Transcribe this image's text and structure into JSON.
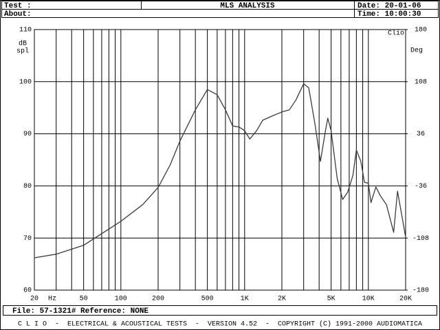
{
  "header": {
    "test": "Test :",
    "about": "About:",
    "title": "MLS ANALYSIS",
    "date": "Date: 20-01-06",
    "time": "Time: 10:00:30"
  },
  "footer": {
    "file": "File: 57-1321# Reference: NONE",
    "credits": "C L I O  -  ELECTRICAL & ACOUSTICAL TESTS  -  VERSION 4.52  -  COPYRIGHT (C) 1991-2000 AUDIOMATICA"
  },
  "chart_data": {
    "type": "line",
    "xscale": "log",
    "grid": true,
    "watermark": "Clio",
    "x_label": "Hz",
    "y_label": [
      "dB",
      "spl"
    ],
    "y2_label": "Deg",
    "xlim": [
      20,
      20000
    ],
    "xticks": [
      20,
      50,
      100,
      200,
      500,
      {
        "value": 1000,
        "label": "1K"
      },
      {
        "value": 2000,
        "label": "2K"
      },
      {
        "value": 5000,
        "label": "5K"
      },
      {
        "value": 10000,
        "label": "10K"
      },
      {
        "value": 20000,
        "label": "20K"
      }
    ],
    "xminor_ticks": [
      30,
      40,
      60,
      70,
      80,
      90,
      300,
      400,
      600,
      700,
      800,
      900,
      3000,
      4000,
      6000,
      7000,
      8000,
      9000
    ],
    "ylim": [
      60,
      110
    ],
    "yticks": [
      60,
      70,
      80,
      90,
      100,
      110
    ],
    "y2lim": [
      -180,
      180
    ],
    "y2ticks": [
      -180,
      -108,
      -36,
      36,
      108,
      180
    ],
    "x": [
      20,
      30,
      50,
      100,
      150,
      200,
      250,
      300,
      400,
      500,
      600,
      700,
      800,
      900,
      1000,
      1100,
      1250,
      1400,
      1700,
      2000,
      2300,
      2600,
      3000,
      3300,
      3700,
      4100,
      4500,
      4700,
      5000,
      5600,
      6200,
      6800,
      7500,
      8000,
      8700,
      9300,
      10000,
      10500,
      11500,
      12500,
      14000,
      16000,
      17200,
      20000
    ],
    "series": [
      {
        "name": "MLS",
        "color": "#3a3a3a",
        "values": [
          66.2,
          66.9,
          68.6,
          73.2,
          76.4,
          79.7,
          84.0,
          88.6,
          94.6,
          98.5,
          97.5,
          94.6,
          91.5,
          91.3,
          90.6,
          89.0,
          90.6,
          92.6,
          93.5,
          94.2,
          94.6,
          96.5,
          99.6,
          98.8,
          91.9,
          84.7,
          90.6,
          93.0,
          90.6,
          81.4,
          77.4,
          78.8,
          82.0,
          86.9,
          84.7,
          80.7,
          80.5,
          76.8,
          79.8,
          78.1,
          76.4,
          71.1,
          79.0,
          70.2
        ]
      }
    ]
  }
}
